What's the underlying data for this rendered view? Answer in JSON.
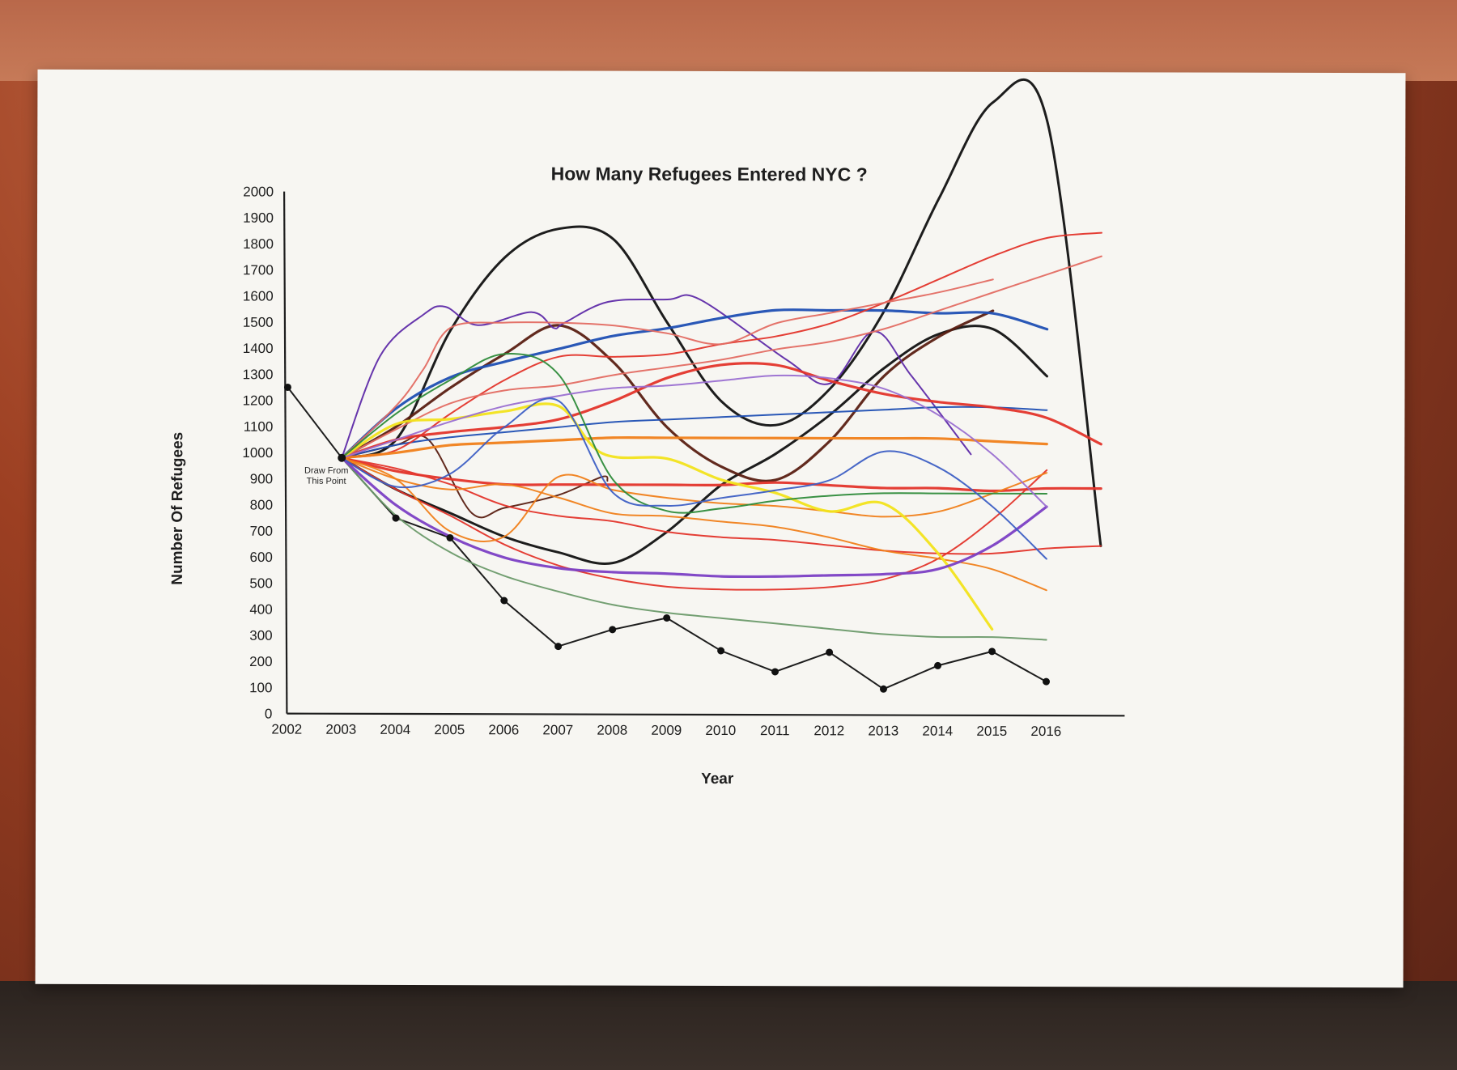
{
  "chart_data": {
    "type": "line",
    "title": "How Many Refugees Entered NYC ?",
    "xlabel": "Year",
    "ylabel": "Number Of Refugees",
    "x": [
      2002,
      2003,
      2004,
      2005,
      2006,
      2007,
      2008,
      2009,
      2010,
      2011,
      2012,
      2013,
      2014,
      2015,
      2016
    ],
    "y_ticks": [
      0,
      100,
      200,
      300,
      400,
      500,
      600,
      700,
      800,
      900,
      1000,
      1100,
      1200,
      1300,
      1400,
      1500,
      1600,
      1700,
      1800,
      1900,
      2000
    ],
    "ylim": [
      0,
      2000
    ],
    "grid": false,
    "annotation": {
      "text_line1": "Draw From",
      "text_line2": "This Point",
      "x": 2003,
      "y": 980
    },
    "series": [
      {
        "color": "#111111",
        "markers": true,
        "x": [
          2002,
          2003,
          2004,
          2005,
          2006,
          2007,
          2008,
          2009,
          2010,
          2011,
          2012,
          2013,
          2014,
          2015,
          2016
        ],
        "y": [
          1250,
          980,
          750,
          675,
          435,
          260,
          325,
          370,
          245,
          165,
          240,
          100,
          190,
          245,
          130
        ]
      },
      {
        "color": "#111111",
        "x": [
          2003,
          2004,
          2005,
          2006,
          2007,
          2008,
          2009,
          2010,
          2011,
          2012,
          2013,
          2014,
          2015,
          2016,
          2017
        ],
        "y": [
          980,
          1050,
          1470,
          1750,
          1860,
          1820,
          1500,
          1200,
          1110,
          1250,
          1550,
          1980,
          2350,
          2270,
          650
        ]
      },
      {
        "color": "#111111",
        "x": [
          2003,
          2004,
          2005,
          2006,
          2007,
          2008,
          2009,
          2010,
          2011,
          2012,
          2013,
          2014,
          2015,
          2016
        ],
        "y": [
          980,
          860,
          770,
          680,
          620,
          580,
          700,
          880,
          1000,
          1150,
          1330,
          1460,
          1480,
          1300
        ]
      },
      {
        "color": "#5a1f12",
        "x": [
          2003,
          2004,
          2005,
          2006,
          2007,
          2008,
          2009,
          2010,
          2011,
          2012,
          2013,
          2014,
          2015
        ],
        "y": [
          980,
          1100,
          1250,
          1380,
          1490,
          1350,
          1100,
          950,
          900,
          1050,
          1300,
          1450,
          1550
        ]
      },
      {
        "color": "#5a1f12",
        "x": [
          2003,
          2004,
          2004.6,
          2005.4,
          2006,
          2007,
          2007.8,
          2007.9
        ],
        "y": [
          980,
          1030,
          1050,
          770,
          790,
          840,
          910,
          895
        ]
      },
      {
        "color": "#5e2aa8",
        "x": [
          2003,
          2003.7,
          2004.5,
          2004.9,
          2005.5,
          2006.5,
          2006.9,
          2007.1,
          2007.9,
          2009,
          2009.6,
          2011.2,
          2012,
          2012.8,
          2013.5,
          2014.6
        ],
        "y": [
          980,
          1370,
          1530,
          1560,
          1490,
          1540,
          1480,
          1500,
          1580,
          1590,
          1590,
          1360,
          1270,
          1470,
          1300,
          1000
        ]
      },
      {
        "color": "#1f4fb3",
        "x": [
          2003,
          2004,
          2005,
          2006,
          2007,
          2008,
          2009,
          2010,
          2011,
          2012,
          2013,
          2014,
          2015,
          2016
        ],
        "y": [
          980,
          1170,
          1290,
          1350,
          1400,
          1450,
          1480,
          1520,
          1550,
          1550,
          1550,
          1540,
          1540,
          1480
        ]
      },
      {
        "color": "#1f4fb3",
        "x": [
          2003,
          2004,
          2005,
          2006,
          2007,
          2008,
          2009,
          2010,
          2011,
          2012,
          2013,
          2014,
          2015,
          2016
        ],
        "y": [
          980,
          1030,
          1060,
          1080,
          1100,
          1120,
          1130,
          1140,
          1150,
          1160,
          1170,
          1180,
          1180,
          1170
        ]
      },
      {
        "color": "#e3342a",
        "x": [
          2003,
          2004,
          2005,
          2006,
          2007,
          2008,
          2009,
          2010,
          2011,
          2012,
          2013,
          2014,
          2015,
          2016,
          2017
        ],
        "y": [
          980,
          1010,
          1150,
          1280,
          1370,
          1370,
          1380,
          1420,
          1450,
          1500,
          1580,
          1670,
          1760,
          1830,
          1850
        ]
      },
      {
        "color": "#e3342a",
        "x": [
          2003,
          2004,
          2005,
          2006,
          2007,
          2008,
          2009,
          2010,
          2011,
          2012,
          2013,
          2014,
          2015,
          2016,
          2017
        ],
        "y": [
          980,
          930,
          900,
          880,
          880,
          880,
          880,
          880,
          890,
          880,
          870,
          870,
          860,
          870,
          870
        ]
      },
      {
        "color": "#e3342a",
        "x": [
          2003,
          2004,
          2005,
          2006,
          2007,
          2008,
          2009,
          2010,
          2011,
          2012,
          2013,
          2014,
          2015,
          2016,
          2017
        ],
        "y": [
          980,
          940,
          880,
          800,
          760,
          740,
          700,
          680,
          670,
          650,
          630,
          620,
          620,
          640,
          650
        ]
      },
      {
        "color": "#e3342a",
        "x": [
          2003,
          2004,
          2005,
          2006,
          2007,
          2008,
          2009,
          2010,
          2011,
          2012,
          2013,
          2014,
          2015,
          2016
        ],
        "y": [
          980,
          860,
          760,
          650,
          570,
          520,
          490,
          480,
          480,
          490,
          520,
          600,
          750,
          940
        ]
      },
      {
        "color": "#e3342a",
        "x": [
          2003,
          2004,
          2005,
          2006,
          2007,
          2008,
          2009,
          2010,
          2011,
          2012,
          2013,
          2014,
          2015,
          2016,
          2017
        ],
        "y": [
          980,
          1050,
          1080,
          1100,
          1130,
          1200,
          1290,
          1340,
          1340,
          1280,
          1230,
          1200,
          1180,
          1140,
          1040
        ]
      },
      {
        "color": "#e36b62",
        "x": [
          2003,
          2004,
          2005,
          2006,
          2007,
          2008,
          2009,
          2010,
          2011,
          2012,
          2013,
          2014,
          2015,
          2016,
          2017
        ],
        "y": [
          980,
          1090,
          1190,
          1240,
          1260,
          1300,
          1330,
          1360,
          1400,
          1430,
          1480,
          1550,
          1620,
          1690,
          1760
        ]
      },
      {
        "color": "#e36b62",
        "x": [
          2003,
          2004,
          2004.5,
          2005,
          2006,
          2007,
          2008,
          2009,
          2010,
          2011,
          2012,
          2013,
          2014,
          2015
        ],
        "y": [
          980,
          1180,
          1320,
          1480,
          1500,
          1500,
          1490,
          1460,
          1420,
          1500,
          1540,
          1580,
          1620,
          1670
        ]
      },
      {
        "color": "#f07f1a",
        "x": [
          2003,
          2004,
          2005,
          2006,
          2007,
          2008,
          2009,
          2010,
          2011,
          2012,
          2013,
          2014,
          2015,
          2016
        ],
        "y": [
          980,
          1000,
          1030,
          1040,
          1050,
          1060,
          1060,
          1060,
          1060,
          1060,
          1060,
          1060,
          1050,
          1040
        ]
      },
      {
        "color": "#f07f1a",
        "x": [
          2003,
          2004,
          2005,
          2006,
          2007,
          2008,
          2009,
          2010,
          2011,
          2012,
          2013,
          2014,
          2015,
          2016
        ],
        "y": [
          980,
          900,
          700,
          680,
          910,
          860,
          830,
          810,
          800,
          780,
          760,
          780,
          850,
          930
        ]
      },
      {
        "color": "#f07f1a",
        "x": [
          2003,
          2004,
          2005,
          2006,
          2007,
          2008,
          2009,
          2010,
          2011,
          2012,
          2013,
          2014,
          2015,
          2016
        ],
        "y": [
          980,
          900,
          860,
          880,
          830,
          770,
          760,
          740,
          720,
          680,
          630,
          600,
          560,
          480
        ]
      },
      {
        "color": "#f2e31b",
        "x": [
          2003,
          2004,
          2005,
          2006,
          2007,
          2007.8,
          2009,
          2010,
          2011,
          2012,
          2013,
          2014,
          2015
        ],
        "y": [
          980,
          1110,
          1130,
          1160,
          1180,
          1000,
          980,
          900,
          850,
          780,
          810,
          620,
          330
        ]
      },
      {
        "color": "#2e8b3a",
        "x": [
          2003,
          2004,
          2005,
          2006,
          2007,
          2008,
          2009,
          2010,
          2011,
          2012,
          2013,
          2014,
          2015,
          2016
        ],
        "y": [
          980,
          1150,
          1280,
          1380,
          1300,
          900,
          780,
          790,
          820,
          840,
          850,
          850,
          850,
          850
        ]
      },
      {
        "color": "#6b9a6a",
        "x": [
          2003,
          2004,
          2005,
          2006,
          2007,
          2008,
          2009,
          2010,
          2011,
          2012,
          2013,
          2014,
          2015,
          2016
        ],
        "y": [
          980,
          760,
          620,
          530,
          470,
          420,
          390,
          370,
          350,
          330,
          310,
          300,
          300,
          290
        ]
      },
      {
        "color": "#7b3fc4",
        "x": [
          2003,
          2004,
          2005,
          2006,
          2007,
          2008,
          2009,
          2010,
          2011,
          2012,
          2013,
          2014,
          2015,
          2016
        ],
        "y": [
          980,
          800,
          680,
          600,
          560,
          545,
          540,
          530,
          530,
          535,
          540,
          560,
          650,
          800
        ]
      },
      {
        "color": "#9a6fd1",
        "x": [
          2003,
          2004,
          2005,
          2006,
          2007,
          2008,
          2009,
          2010,
          2011,
          2012,
          2013,
          2014,
          2015,
          2016
        ],
        "y": [
          980,
          1050,
          1120,
          1180,
          1220,
          1250,
          1260,
          1280,
          1300,
          1290,
          1250,
          1150,
          1000,
          800
        ]
      },
      {
        "color": "#3d5fc4",
        "x": [
          2003,
          2004,
          2005,
          2006,
          2007,
          2008,
          2009,
          2010,
          2011,
          2012,
          2013,
          2014,
          2015,
          2016
        ],
        "y": [
          980,
          870,
          920,
          1100,
          1200,
          850,
          800,
          830,
          860,
          900,
          1010,
          950,
          800,
          600
        ]
      }
    ]
  }
}
